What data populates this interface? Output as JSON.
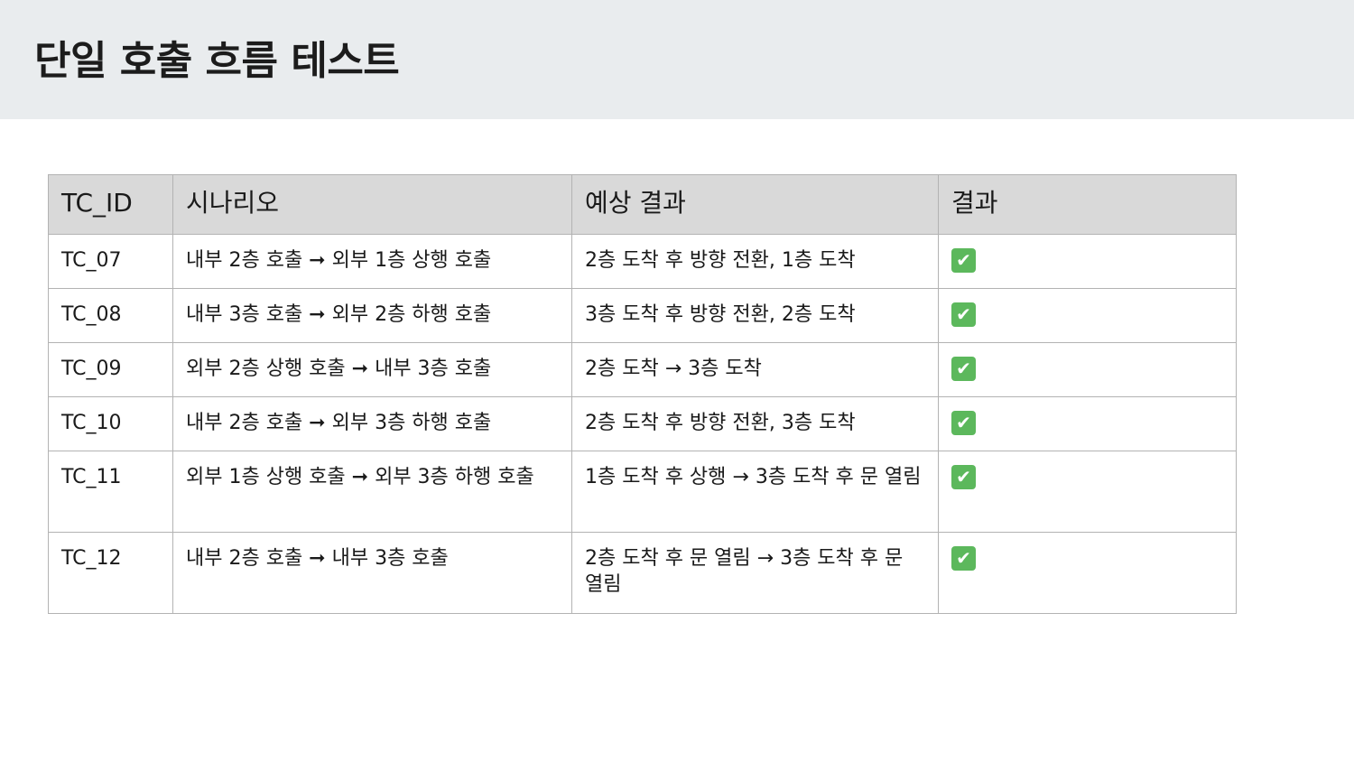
{
  "title": "단일 호출 흐름 테스트",
  "table": {
    "headers": [
      "TC_ID",
      "시나리오",
      "예상 결과",
      "결과"
    ],
    "rows": [
      {
        "id": "TC_07",
        "scenario": "내부 2층 호출 ➞ 외부 1층 상행 호출",
        "expected": "2층 도착 후 방향 전환, 1층 도착",
        "result": "✔",
        "result_icon": "check-mark-icon"
      },
      {
        "id": "TC_08",
        "scenario": "내부 3층 호출 ➞ 외부 2층 하행 호출",
        "expected": "3층 도착 후 방향 전환, 2층 도착",
        "result": "✔",
        "result_icon": "check-mark-icon"
      },
      {
        "id": "TC_09",
        "scenario": "외부 2층 상행 호출 ➞ 내부 3층 호출",
        "expected": "2층 도착 → 3층 도착",
        "result": "✔",
        "result_icon": "check-mark-icon"
      },
      {
        "id": "TC_10",
        "scenario": "내부 2층 호출 ➞ 외부 3층 하행 호출",
        "expected": "2층 도착 후 방향 전환, 3층 도착",
        "result": "✔",
        "result_icon": "check-mark-icon"
      },
      {
        "id": "TC_11",
        "scenario": "외부 1층 상행 호출 ➞ 외부 3층 하행 호출",
        "expected": "1층 도착 후 상행 → 3층 도착 후 문 열림",
        "result": "✔",
        "result_icon": "check-mark-icon"
      },
      {
        "id": "TC_12",
        "scenario": "내부 2층 호출 ➞ 내부 3층 호출",
        "expected": "2층 도착 후 문 열림 → 3층 도착 후 문 열림",
        "result": "✔",
        "result_icon": "check-mark-icon"
      }
    ]
  },
  "colors": {
    "header_band": "#e9ecee",
    "table_header_bg": "#d9d9d9",
    "border": "#b3b3b3",
    "check_bg": "#5cb85c"
  }
}
